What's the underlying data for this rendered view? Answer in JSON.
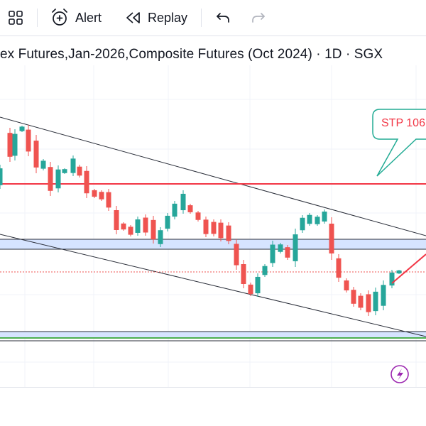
{
  "toolbar": {
    "layout_icon": "grid-layout-icon",
    "alert_label": "Alert",
    "replay_label": "Replay",
    "undo_icon": "undo-icon",
    "redo_icon": "redo-icon"
  },
  "legend": {
    "text": "ex Futures,Jan-2026,Composite Futures (Oct 2024) · 1D · SGX"
  },
  "annotations": {
    "callout_text": "STP 106"
  },
  "colors": {
    "up": "#26a69a",
    "down": "#ef5350",
    "resistance": "#f23645",
    "zone_fill": "#d6e4ff",
    "channel": "#2a2e39",
    "support": "#4caf50",
    "lightning": "#9c27b0"
  }
}
